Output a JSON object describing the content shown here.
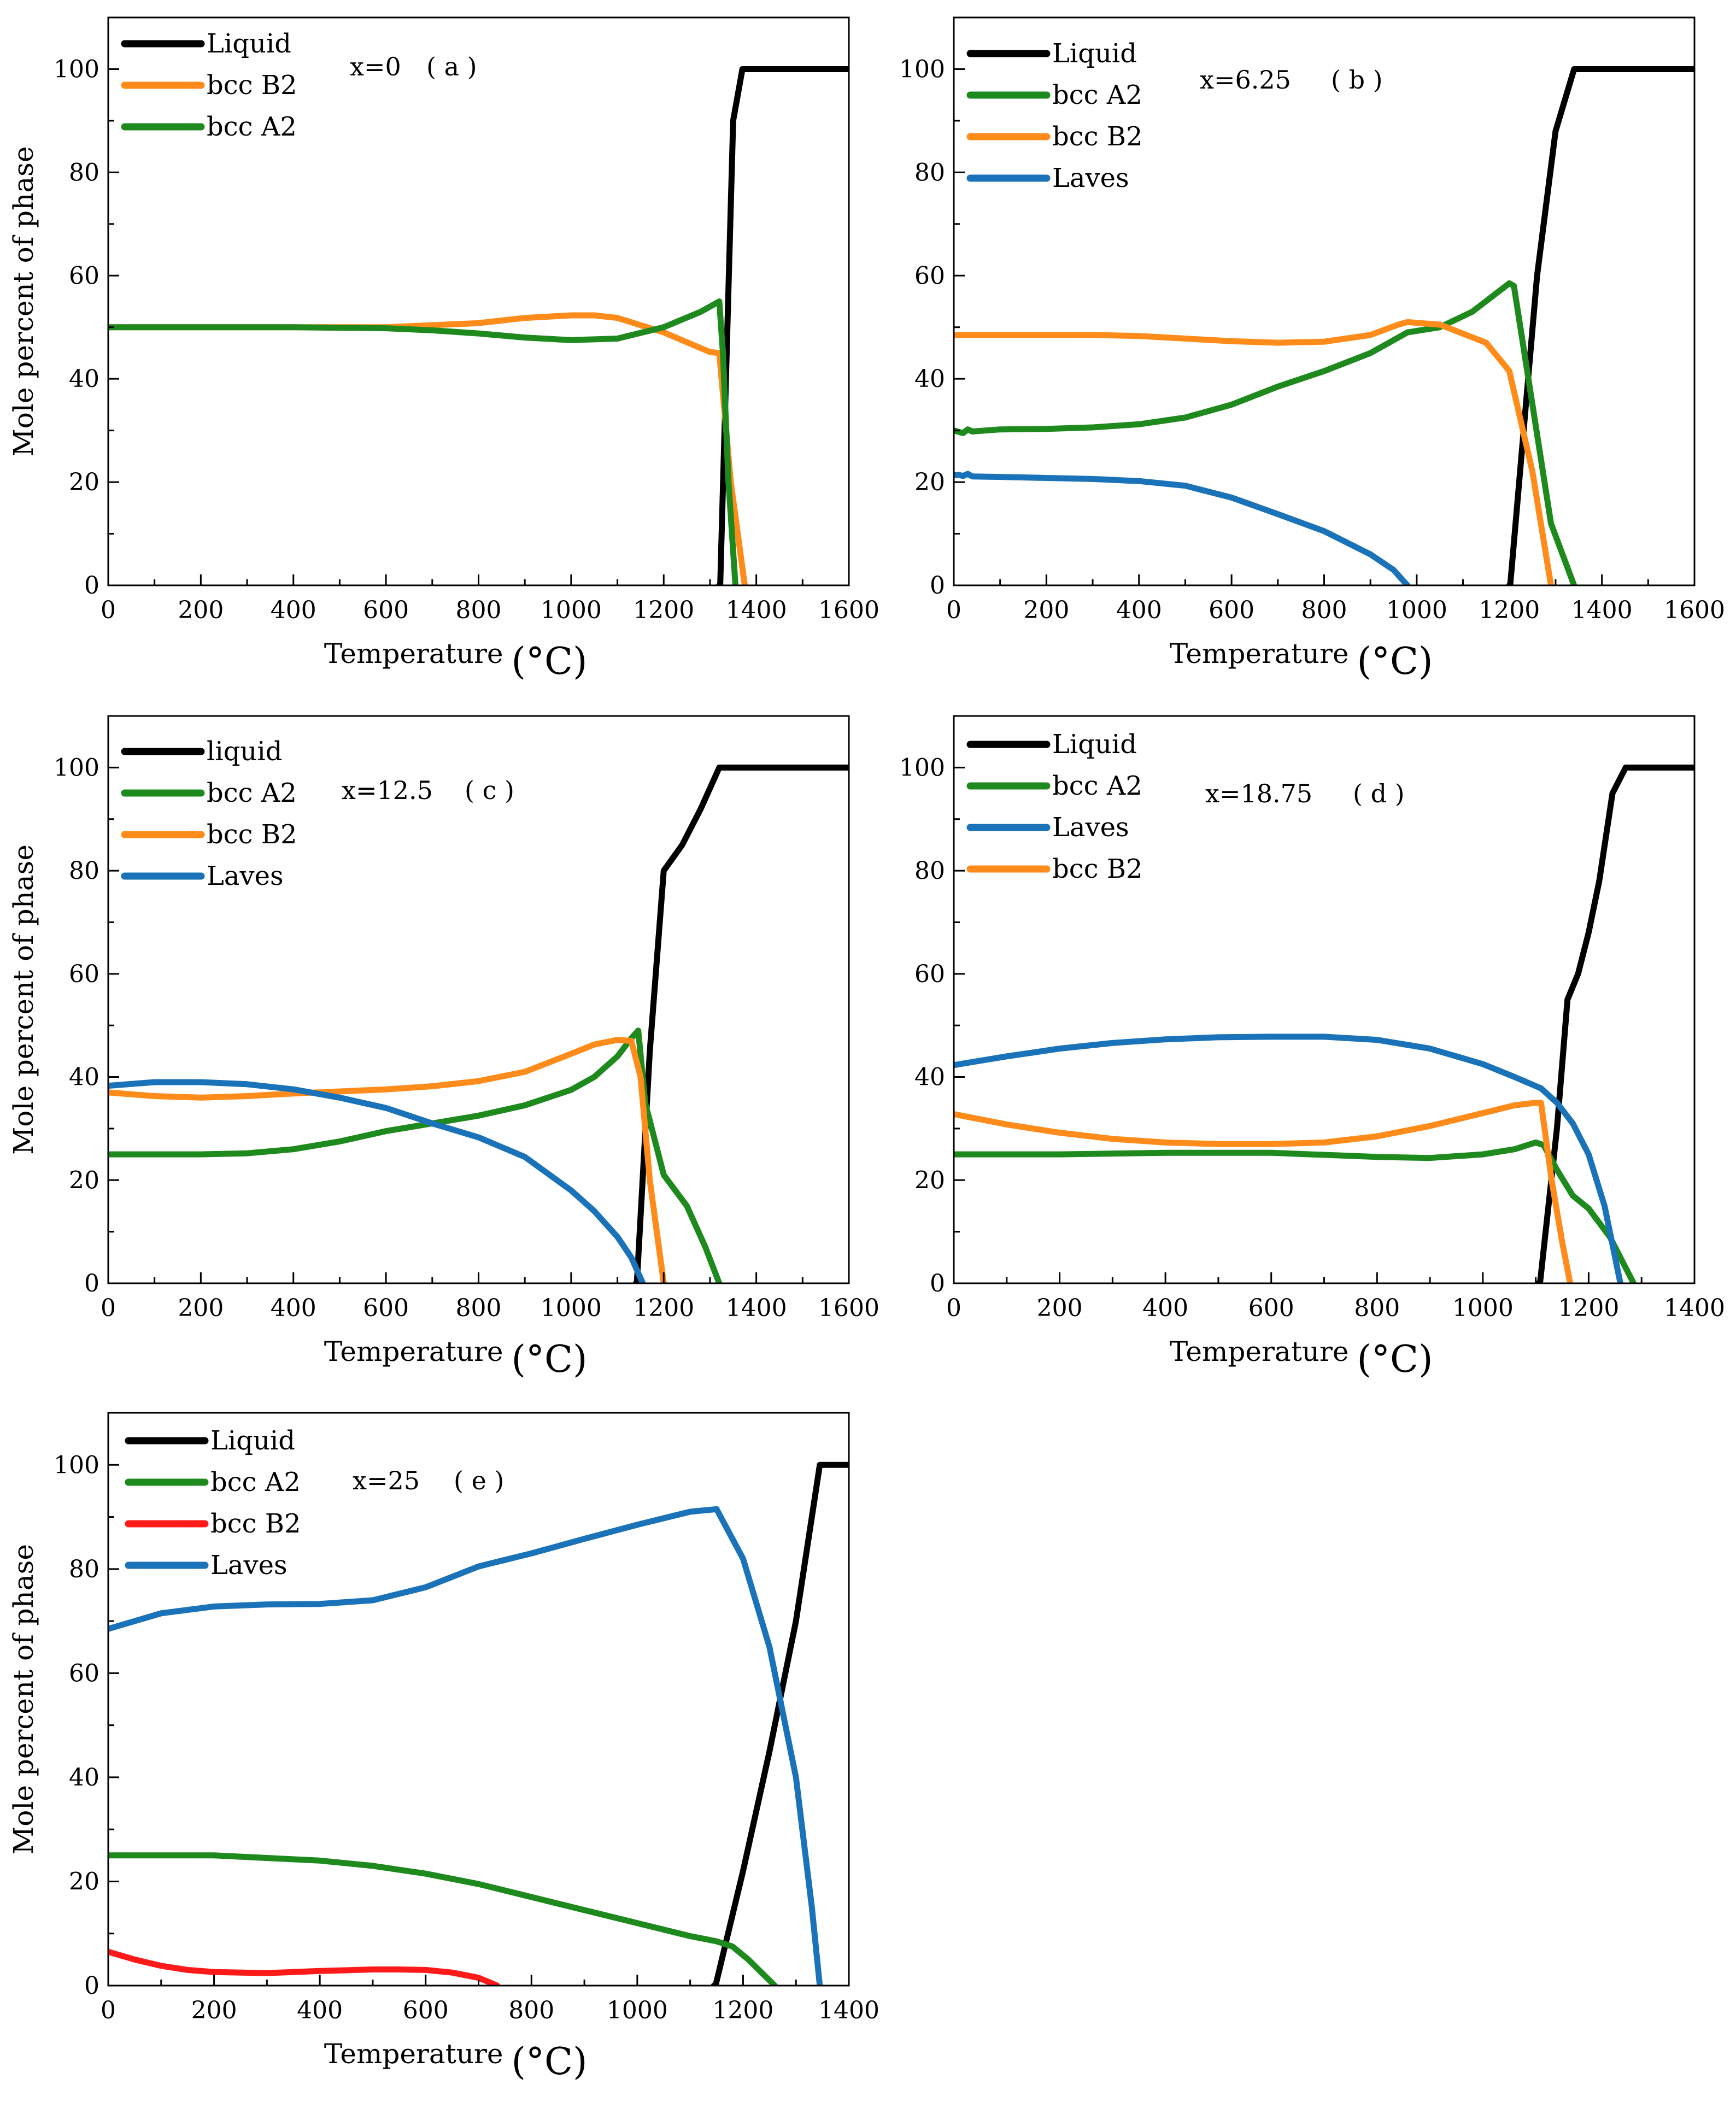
{
  "colors": {
    "Liquid": "#000000",
    "liquid": "#000000",
    "bcc A2": "#1e8a1e",
    "bcc B2": "#ff8c1a",
    "bcc B2 (e)": "#ff1a1a",
    "Laves": "#1a73b8"
  },
  "chart_data": [
    {
      "id": "a",
      "type": "line",
      "title": "",
      "xlabel": "Temperature",
      "xunit": "(°C)",
      "ylabel": "Mole percent of phase",
      "xlim": [
        0,
        1600
      ],
      "ylim": [
        0,
        110
      ],
      "xticks": [
        0,
        200,
        400,
        600,
        800,
        1000,
        1200,
        1400,
        1600
      ],
      "yticks": [
        0,
        20,
        40,
        60,
        80,
        100
      ],
      "annotation_x": "x=0",
      "annotation_label": "( a )",
      "legend": [
        "Liquid",
        "bcc B2",
        "bcc A2"
      ],
      "series": [
        {
          "name": "Liquid",
          "color": "#000000",
          "x": [
            1320,
            1322,
            1350,
            1370,
            1600
          ],
          "y": [
            0,
            0,
            90,
            100,
            100
          ]
        },
        {
          "name": "bcc B2",
          "color": "#ff8c1a",
          "x": [
            0,
            400,
            600,
            800,
            900,
            1000,
            1050,
            1100,
            1200,
            1300,
            1320,
            1345,
            1375
          ],
          "y": [
            50,
            50,
            50,
            50.8,
            51.8,
            52.3,
            52.3,
            51.8,
            49,
            45.2,
            45,
            20,
            0
          ]
        },
        {
          "name": "bcc A2",
          "color": "#1e8a1e",
          "x": [
            0,
            400,
            600,
            700,
            800,
            900,
            1000,
            1100,
            1200,
            1280,
            1320,
            1328,
            1340,
            1355
          ],
          "y": [
            50,
            50,
            49.8,
            49.4,
            48.8,
            48,
            47.5,
            47.8,
            50,
            53,
            55,
            45,
            20,
            0
          ]
        }
      ]
    },
    {
      "id": "b",
      "type": "line",
      "title": "",
      "xlabel": "Temperature",
      "xunit": "(°C)",
      "ylabel": "",
      "xlim": [
        0,
        1600
      ],
      "ylim": [
        0,
        110
      ],
      "xticks": [
        0,
        200,
        400,
        600,
        800,
        1000,
        1200,
        1400,
        1600
      ],
      "yticks": [
        0,
        20,
        40,
        60,
        80,
        100
      ],
      "annotation_x": "x=6.25",
      "annotation_label": "( b )",
      "legend": [
        "Liquid",
        "bcc A2",
        "bcc B2",
        "Laves"
      ],
      "series": [
        {
          "name": "Liquid",
          "color": "#000000",
          "x": [
            1200,
            1202,
            1260,
            1300,
            1340,
            1600
          ],
          "y": [
            0,
            0,
            60,
            88,
            100,
            100
          ]
        },
        {
          "name": "bcc A2",
          "color": "#1e8a1e",
          "x": [
            0,
            20,
            30,
            40,
            100,
            200,
            300,
            400,
            500,
            600,
            700,
            800,
            900,
            980,
            1050,
            1120,
            1200,
            1210,
            1250,
            1290,
            1340
          ],
          "y": [
            30,
            29.5,
            30.2,
            29.8,
            30.2,
            30.3,
            30.6,
            31.2,
            32.5,
            35,
            38.5,
            41.5,
            45,
            49,
            50,
            53,
            58.5,
            58,
            35,
            12,
            0
          ]
        },
        {
          "name": "bcc B2",
          "color": "#ff8c1a",
          "x": [
            0,
            100,
            200,
            300,
            400,
            500,
            600,
            700,
            800,
            900,
            960,
            980,
            1050,
            1150,
            1200,
            1250,
            1290
          ],
          "y": [
            48.5,
            48.5,
            48.5,
            48.5,
            48.3,
            47.8,
            47.3,
            47,
            47.2,
            48.5,
            50.5,
            51,
            50.5,
            47,
            41.5,
            22,
            0
          ]
        },
        {
          "name": "Laves",
          "color": "#1a73b8",
          "x": [
            0,
            10,
            20,
            30,
            40,
            100,
            200,
            300,
            400,
            500,
            600,
            700,
            800,
            900,
            950,
            980
          ],
          "y": [
            21.3,
            21.4,
            21.2,
            21.6,
            21.1,
            21,
            20.8,
            20.6,
            20.2,
            19.3,
            17,
            13.8,
            10.5,
            6,
            3,
            0
          ]
        }
      ]
    },
    {
      "id": "c",
      "type": "line",
      "title": "",
      "xlabel": "Temperature",
      "xunit": "(°C)",
      "ylabel": "Mole percent of phase",
      "xlim": [
        0,
        1600
      ],
      "ylim": [
        0,
        110
      ],
      "xticks": [
        0,
        200,
        400,
        600,
        800,
        1000,
        1200,
        1400,
        1600
      ],
      "yticks": [
        0,
        20,
        40,
        60,
        80,
        100
      ],
      "annotation_x": "x=12.5",
      "annotation_label": "( c )",
      "legend": [
        "liquid",
        "bcc A2",
        "bcc B2",
        "Laves"
      ],
      "series": [
        {
          "name": "liquid",
          "color": "#000000",
          "x": [
            1140,
            1142,
            1170,
            1200,
            1240,
            1280,
            1320,
            1600
          ],
          "y": [
            0,
            0,
            45,
            80,
            85,
            92,
            100,
            100
          ]
        },
        {
          "name": "bcc A2",
          "color": "#1e8a1e",
          "x": [
            0,
            200,
            300,
            400,
            500,
            600,
            700,
            800,
            900,
            1000,
            1050,
            1100,
            1130,
            1145,
            1160,
            1200,
            1250,
            1290,
            1320
          ],
          "y": [
            25,
            25,
            25.2,
            26,
            27.5,
            29.5,
            31,
            32.5,
            34.5,
            37.5,
            40,
            44,
            47.5,
            49,
            35,
            21,
            15,
            7,
            0
          ]
        },
        {
          "name": "bcc B2",
          "color": "#ff8c1a",
          "x": [
            0,
            100,
            200,
            300,
            400,
            500,
            600,
            700,
            800,
            900,
            1000,
            1050,
            1100,
            1130,
            1150,
            1170,
            1200
          ],
          "y": [
            37,
            36.3,
            36,
            36.3,
            36.8,
            37.2,
            37.6,
            38.2,
            39.2,
            41,
            44.5,
            46.3,
            47.2,
            47,
            40,
            20,
            0
          ]
        },
        {
          "name": "Laves",
          "color": "#1a73b8",
          "x": [
            0,
            100,
            200,
            300,
            400,
            500,
            600,
            700,
            800,
            900,
            1000,
            1050,
            1100,
            1130,
            1155
          ],
          "y": [
            38.3,
            39,
            39,
            38.6,
            37.6,
            36,
            34,
            31,
            28.3,
            24.5,
            18,
            14,
            9,
            5,
            0
          ]
        }
      ]
    },
    {
      "id": "d",
      "type": "line",
      "title": "",
      "xlabel": "Temperature",
      "xunit": "(°C)",
      "ylabel": "",
      "xlim": [
        0,
        1400
      ],
      "ylim": [
        0,
        110
      ],
      "xticks": [
        0,
        200,
        400,
        600,
        800,
        1000,
        1200,
        1400
      ],
      "yticks": [
        0,
        20,
        40,
        60,
        80,
        100
      ],
      "annotation_x": "x=18.75",
      "annotation_label": "( d )",
      "legend": [
        "Liquid",
        "bcc A2",
        "Laves",
        "bcc B2"
      ],
      "series": [
        {
          "name": "Liquid",
          "color": "#000000",
          "x": [
            1105,
            1108,
            1140,
            1160,
            1180,
            1200,
            1220,
            1245,
            1270,
            1280,
            1400
          ],
          "y": [
            0,
            0,
            30,
            55,
            60,
            68,
            78,
            95,
            100,
            100,
            100
          ]
        },
        {
          "name": "bcc A2",
          "color": "#1e8a1e",
          "x": [
            0,
            200,
            400,
            600,
            800,
            900,
            1000,
            1060,
            1100,
            1115,
            1140,
            1170,
            1200,
            1240,
            1285
          ],
          "y": [
            25,
            25,
            25.3,
            25.3,
            24.5,
            24.3,
            25,
            26,
            27.3,
            26.8,
            22,
            17,
            14.5,
            9,
            0
          ]
        },
        {
          "name": "Laves",
          "color": "#1a73b8",
          "x": [
            0,
            100,
            200,
            300,
            400,
            500,
            600,
            700,
            800,
            900,
            1000,
            1060,
            1110,
            1140,
            1170,
            1200,
            1230,
            1260
          ],
          "y": [
            42.3,
            44,
            45.5,
            46.6,
            47.3,
            47.7,
            47.8,
            47.8,
            47.2,
            45.5,
            42.5,
            40,
            37.8,
            35,
            31,
            25,
            15,
            0
          ]
        },
        {
          "name": "bcc B2",
          "color": "#ff8c1a",
          "x": [
            0,
            100,
            200,
            300,
            400,
            500,
            600,
            700,
            800,
            900,
            1000,
            1060,
            1100,
            1110,
            1130,
            1150,
            1165
          ],
          "y": [
            32.8,
            30.8,
            29.2,
            28,
            27.3,
            27,
            27,
            27.3,
            28.5,
            30.5,
            33,
            34.5,
            35,
            35,
            20,
            8,
            0
          ]
        }
      ]
    },
    {
      "id": "e",
      "type": "line",
      "title": "",
      "xlabel": "Temperature",
      "xunit": "(°C)",
      "ylabel": "Mole percent of phase",
      "xlim": [
        0,
        1400
      ],
      "ylim": [
        0,
        110
      ],
      "xticks": [
        0,
        200,
        400,
        600,
        800,
        1000,
        1200,
        1400
      ],
      "yticks": [
        0,
        20,
        40,
        60,
        80,
        100
      ],
      "annotation_x": "x=25",
      "annotation_label": "( e )",
      "legend": [
        "Liquid",
        "bcc A2",
        "bcc B2",
        "Laves"
      ],
      "series": [
        {
          "name": "Liquid",
          "color": "#000000",
          "x": [
            1145,
            1148,
            1200,
            1250,
            1300,
            1330,
            1345,
            1350,
            1400
          ],
          "y": [
            0,
            0,
            22,
            45,
            70,
            90,
            100,
            100,
            100
          ]
        },
        {
          "name": "bcc A2",
          "color": "#1e8a1e",
          "x": [
            0,
            200,
            400,
            500,
            600,
            700,
            800,
            900,
            1000,
            1100,
            1150,
            1180,
            1210,
            1240,
            1260
          ],
          "y": [
            25,
            25,
            24,
            23,
            21.5,
            19.5,
            17,
            14.5,
            12,
            9.5,
            8.5,
            7.5,
            5,
            2,
            0
          ]
        },
        {
          "name": "bcc B2",
          "color": "#ff1a1a",
          "x": [
            0,
            50,
            100,
            150,
            200,
            300,
            400,
            500,
            550,
            600,
            650,
            700,
            735
          ],
          "y": [
            6.5,
            5,
            3.8,
            3,
            2.6,
            2.4,
            2.8,
            3.1,
            3.1,
            3,
            2.5,
            1.5,
            0
          ]
        },
        {
          "name": "Laves",
          "color": "#1a73b8",
          "x": [
            0,
            100,
            200,
            300,
            400,
            500,
            600,
            700,
            740,
            800,
            900,
            1000,
            1100,
            1150,
            1200,
            1250,
            1300,
            1330,
            1345
          ],
          "y": [
            68.5,
            71.5,
            72.8,
            73.2,
            73.3,
            74,
            76.5,
            80.5,
            81.5,
            83,
            85.8,
            88.5,
            91,
            91.5,
            82,
            65,
            40,
            15,
            0
          ]
        }
      ]
    }
  ]
}
